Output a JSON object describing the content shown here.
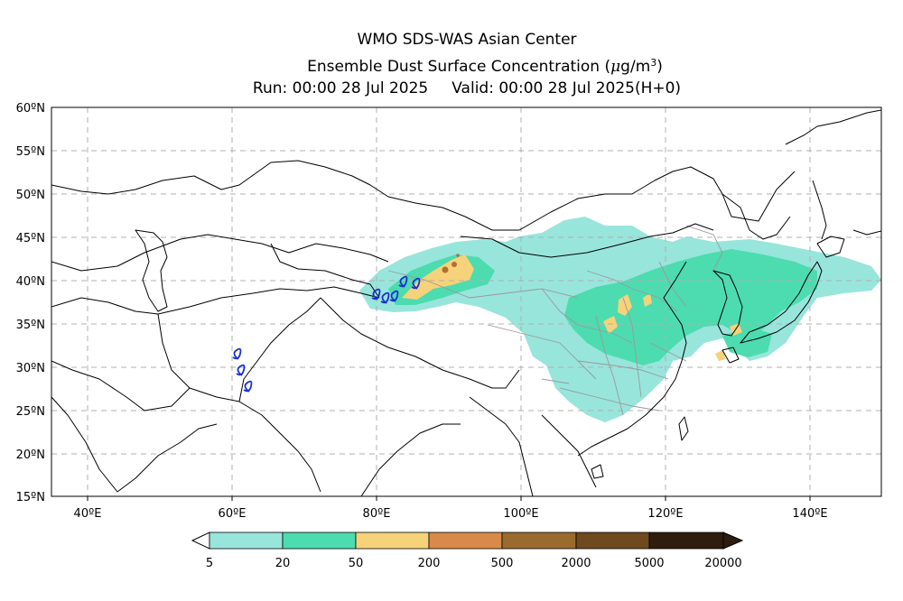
{
  "header": {
    "title": "WMO SDS-WAS Asian Center",
    "subtitle_prefix": "Ensemble Dust Surface Concentration (",
    "subtitle_unit_mu": "μ",
    "subtitle_unit_g": "g/m",
    "subtitle_unit_exp": "3",
    "subtitle_suffix": ")",
    "run": "Run: 00:00 28 Jul 2025",
    "valid": "Valid: 00:00 28 Jul 2025(H+0)"
  },
  "map": {
    "lon_range": [
      35,
      150
    ],
    "lat_range": [
      15,
      60
    ],
    "lon_ticks": [
      {
        "value": 40,
        "label": "40ºE"
      },
      {
        "value": 60,
        "label": "60ºE"
      },
      {
        "value": 80,
        "label": "80ºE"
      },
      {
        "value": 100,
        "label": "100ºE"
      },
      {
        "value": 120,
        "label": "120ºE"
      },
      {
        "value": 140,
        "label": "140ºE"
      }
    ],
    "lat_ticks": [
      {
        "value": 60,
        "label": "60ºN"
      },
      {
        "value": 55,
        "label": "55ºN"
      },
      {
        "value": 50,
        "label": "50ºN"
      },
      {
        "value": 45,
        "label": "45ºN"
      },
      {
        "value": 40,
        "label": "40ºN"
      },
      {
        "value": 35,
        "label": "35ºN"
      },
      {
        "value": 30,
        "label": "30ºN"
      },
      {
        "value": 25,
        "label": "25ºN"
      },
      {
        "value": 20,
        "label": "20ºN"
      },
      {
        "value": 15,
        "label": "15ºN"
      }
    ],
    "grid": "dashed"
  },
  "legend": {
    "labels": [
      "5",
      "20",
      "50",
      "200",
      "500",
      "2000",
      "5000",
      "20000"
    ],
    "colors": [
      "#98e5dc",
      "#4cdcaf",
      "#f6d27a",
      "#d98a4a",
      "#9a6a2e",
      "#6f4a1e",
      "#2e1c0e"
    ],
    "overflow_color": "#2e1c0e"
  },
  "colors": {
    "country_border": "#000000",
    "province_border": "#9a9a9a",
    "sandstorm_symbol": "#1a2fd1",
    "grid": "#b0b0b0"
  }
}
